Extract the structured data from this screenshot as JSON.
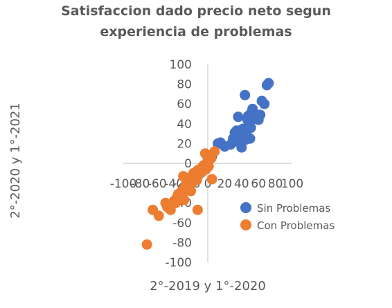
{
  "chart_data": {
    "type": "scatter",
    "title": "Satisfaccion dado precio neto segun experiencia de problemas",
    "title_lines": [
      "Satisfaccion dado precio neto segun",
      "experiencia de problemas"
    ],
    "xlabel": "2°-2019 y 1°-2020",
    "ylabel": "2°-2020 y 1°-2021",
    "xlim": [
      -100,
      100
    ],
    "ylim": [
      -100,
      100
    ],
    "x_ticks": [
      -100,
      -80,
      -60,
      -40,
      -20,
      0,
      20,
      40,
      60,
      80,
      100
    ],
    "y_ticks": [
      100,
      80,
      60,
      40,
      20,
      0,
      -20,
      -40,
      -60,
      -80,
      -100
    ],
    "grid": false,
    "legend_position": "lower-right",
    "series": [
      {
        "name": "Sin Problemas",
        "color": "#4472C4",
        "points": [
          [
            5,
            7
          ],
          [
            12,
            20
          ],
          [
            15,
            21
          ],
          [
            20,
            17
          ],
          [
            27,
            19
          ],
          [
            30,
            25
          ],
          [
            32,
            31
          ],
          [
            34,
            33
          ],
          [
            35,
            22
          ],
          [
            36,
            47
          ],
          [
            38,
            29
          ],
          [
            40,
            34
          ],
          [
            40,
            16
          ],
          [
            42,
            35
          ],
          [
            44,
            69
          ],
          [
            45,
            24
          ],
          [
            46,
            32
          ],
          [
            47,
            44
          ],
          [
            48,
            48
          ],
          [
            50,
            25
          ],
          [
            51,
            36
          ],
          [
            52,
            52
          ],
          [
            53,
            55
          ],
          [
            55,
            45
          ],
          [
            56,
            50
          ],
          [
            58,
            48
          ],
          [
            60,
            44
          ],
          [
            62,
            49
          ],
          [
            64,
            63
          ],
          [
            67,
            60
          ],
          [
            70,
            79
          ],
          [
            72,
            81
          ],
          [
            -35,
            -35
          ]
        ]
      },
      {
        "name": "Con Problemas",
        "color": "#ED7D31",
        "points": [
          [
            -72,
            -82
          ],
          [
            -65,
            -47
          ],
          [
            -58,
            -53
          ],
          [
            -50,
            -40
          ],
          [
            -48,
            -44
          ],
          [
            -46,
            -43
          ],
          [
            -44,
            -47
          ],
          [
            -43,
            -42
          ],
          [
            -40,
            -38
          ],
          [
            -38,
            -40
          ],
          [
            -37,
            -35
          ],
          [
            -35,
            -31
          ],
          [
            -30,
            -27
          ],
          [
            -29,
            -13
          ],
          [
            -28,
            -29
          ],
          [
            -27,
            -24
          ],
          [
            -25,
            -19
          ],
          [
            -24,
            -15
          ],
          [
            -23,
            -23
          ],
          [
            -22,
            -25
          ],
          [
            -21,
            -21
          ],
          [
            -20,
            -28
          ],
          [
            -19,
            -18
          ],
          [
            -18,
            -19
          ],
          [
            -17,
            -10
          ],
          [
            -16,
            -14
          ],
          [
            -15,
            -16
          ],
          [
            -14,
            -12
          ],
          [
            -13,
            -17
          ],
          [
            -12,
            -7
          ],
          [
            -10,
            -11
          ],
          [
            -9,
            -8
          ],
          [
            -8,
            -5
          ],
          [
            -7,
            -9
          ],
          [
            -6,
            -4
          ],
          [
            -5,
            -2
          ],
          [
            -4,
            -3
          ],
          [
            -3,
            10
          ],
          [
            -2,
            -6
          ],
          [
            -1,
            0
          ],
          [
            0,
            4
          ],
          [
            1,
            -3
          ],
          [
            2,
            8
          ],
          [
            4,
            5
          ],
          [
            5,
            -16
          ],
          [
            8,
            12
          ],
          [
            -12,
            -47
          ],
          [
            -28,
            -37
          ]
        ]
      }
    ]
  }
}
